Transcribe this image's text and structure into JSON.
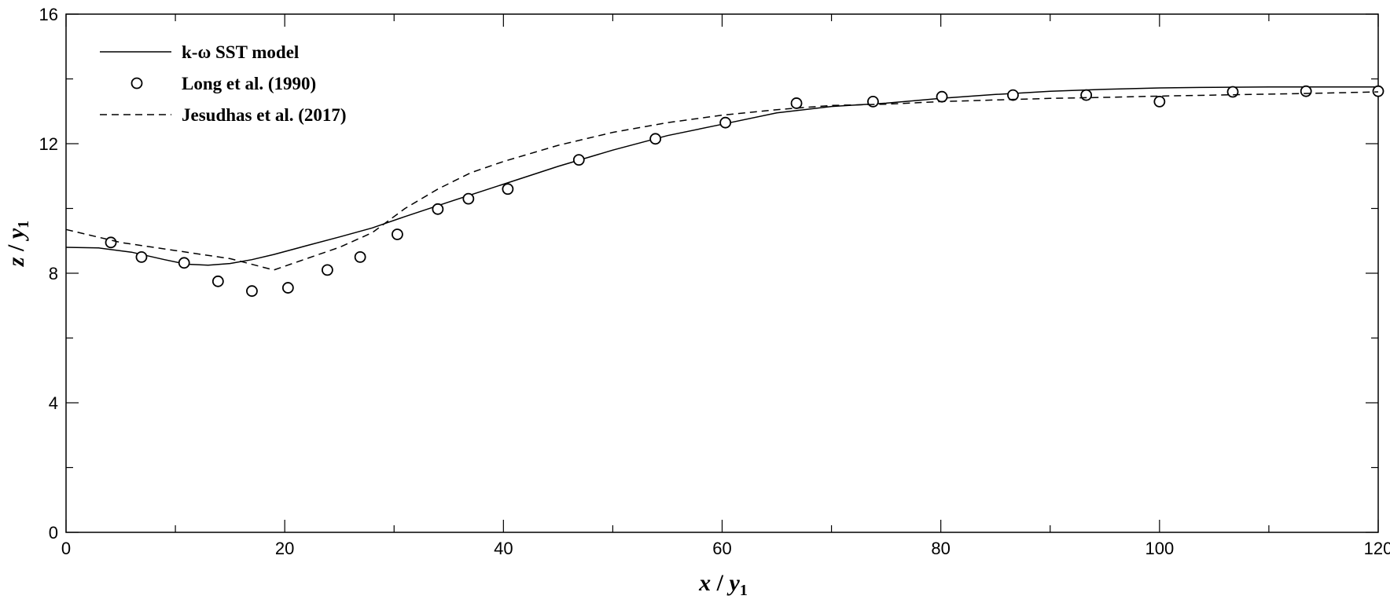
{
  "chart_data": {
    "type": "line",
    "xlabel": "x / y1",
    "xlabel_parts": {
      "var": "x",
      "sep": " / ",
      "base": "y",
      "sub": "1"
    },
    "ylabel": "z / y1",
    "ylabel_parts": {
      "var": "z",
      "sep": " / ",
      "base": "y",
      "sub": "1"
    },
    "xlim": [
      0,
      120
    ],
    "ylim": [
      0,
      16
    ],
    "xticks": [
      0,
      20,
      40,
      60,
      80,
      100,
      120
    ],
    "xminor": [
      10,
      30,
      50,
      70,
      90,
      110
    ],
    "yticks": [
      0,
      4,
      8,
      12,
      16
    ],
    "yminor": [
      2,
      6,
      10,
      14
    ],
    "grid": false,
    "legend_position": "top-left",
    "series": [
      {
        "name": "k-ω SST model",
        "style": "solid",
        "color": "#000000",
        "x": [
          0,
          3,
          6,
          9,
          11,
          13,
          15,
          17,
          19,
          22,
          25,
          28,
          31,
          35,
          40,
          45,
          50,
          55,
          60,
          65,
          70,
          75,
          80,
          85,
          90,
          95,
          100,
          105,
          110,
          115,
          120
        ],
        "y": [
          8.8,
          8.78,
          8.65,
          8.42,
          8.28,
          8.25,
          8.3,
          8.42,
          8.58,
          8.85,
          9.12,
          9.4,
          9.75,
          10.2,
          10.75,
          11.3,
          11.8,
          12.25,
          12.6,
          12.95,
          13.15,
          13.25,
          13.4,
          13.52,
          13.62,
          13.68,
          13.72,
          13.74,
          13.75,
          13.75,
          13.75
        ]
      },
      {
        "name": "Long et al. (1990)",
        "style": "marker-circle",
        "color": "#000000",
        "x": [
          4.1,
          6.9,
          10.8,
          13.9,
          17.0,
          20.3,
          23.9,
          26.9,
          30.3,
          34.0,
          36.8,
          40.4,
          46.9,
          53.9,
          60.3,
          66.8,
          73.8,
          80.1,
          86.6,
          93.3,
          100.0,
          106.7,
          113.4,
          120.0
        ],
        "y": [
          8.95,
          8.5,
          8.32,
          7.75,
          7.45,
          7.55,
          8.1,
          8.5,
          9.2,
          9.98,
          10.3,
          10.6,
          11.5,
          12.15,
          12.65,
          13.25,
          13.3,
          13.45,
          13.5,
          13.5,
          13.3,
          13.6,
          13.62,
          13.62
        ]
      },
      {
        "name": "Jesudhas et al. (2017)",
        "style": "dashed",
        "color": "#000000",
        "x": [
          0,
          5,
          10,
          15,
          19,
          22,
          25,
          28,
          31,
          34,
          37,
          40,
          45,
          50,
          55,
          60,
          65,
          70,
          75,
          80,
          85,
          90,
          95,
          100,
          105,
          110,
          115,
          120
        ],
        "y": [
          9.35,
          8.95,
          8.7,
          8.45,
          8.1,
          8.45,
          8.8,
          9.25,
          10.0,
          10.6,
          11.1,
          11.45,
          11.95,
          12.35,
          12.65,
          12.88,
          13.05,
          13.18,
          13.22,
          13.3,
          13.35,
          13.4,
          13.43,
          13.47,
          13.5,
          13.53,
          13.56,
          13.6
        ]
      }
    ]
  }
}
